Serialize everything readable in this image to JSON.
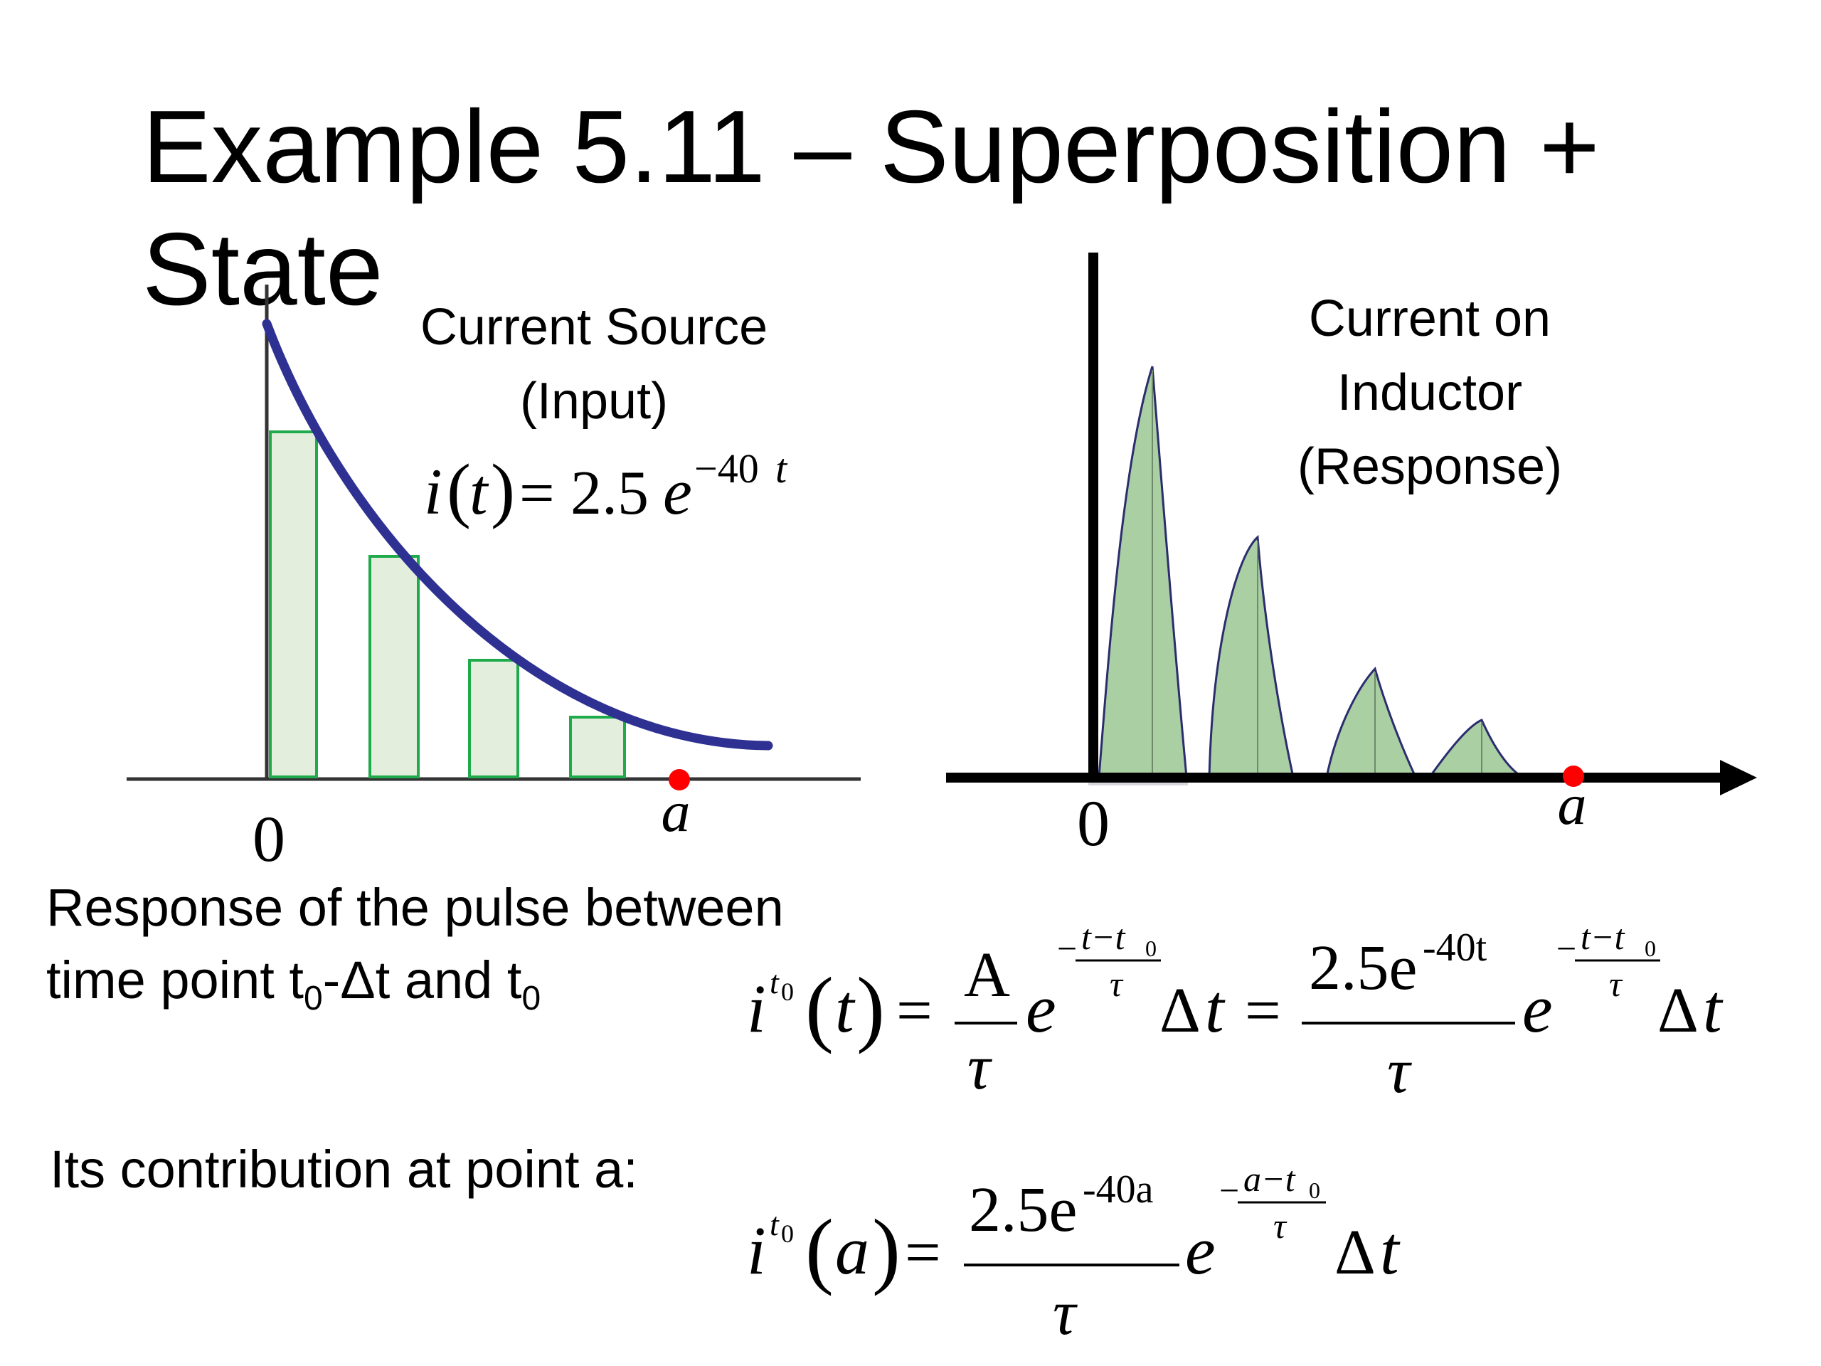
{
  "title": "Example 5.11 – Superposition + State",
  "left_chart": {
    "label_line1": "Current Source",
    "label_line2": "(Input)",
    "formula": {
      "lhs_i": "i",
      "lhs_t": "t",
      "equals": "=",
      "coeff": "2.5",
      "e": "e",
      "exponent": "−40",
      "exponent_var": "t"
    },
    "origin_label": "0",
    "point_label": "a",
    "colors": {
      "curve": "#2e3192",
      "bar_fill": "#e3efdc",
      "bar_stroke": "#1faa4b",
      "point": "#ff0000",
      "axis": "#333333"
    }
  },
  "right_chart": {
    "label_line1": "Current on",
    "label_line2": "Inductor",
    "label_line3": "(Response)",
    "origin_label": "0",
    "point_label": "a",
    "colors": {
      "pulse_fill": "#a9cfa3",
      "pulse_stroke": "#2b2d6e",
      "axis": "#000000",
      "point": "#ff0000"
    }
  },
  "text": {
    "response_line1": "Response of the pulse between",
    "response_line2_a": "time point t",
    "response_sub1": "0",
    "response_line2_b": "-Δt and t",
    "response_sub2": "0",
    "contribution": "Its contribution at point a:"
  },
  "equation1": {
    "i": "i",
    "sup_t": "t",
    "sup_0": "0",
    "paren_t": "t",
    "equals1": "=",
    "A": "A",
    "tau1": "τ",
    "e1": "e",
    "minus1": "−",
    "exp_num1": "t−t",
    "exp_num1_sub": "0",
    "exp_den1": "τ",
    "delta1": "Δ",
    "dt1": "t",
    "equals2": "=",
    "num2": "2.5e",
    "num2_exp": "-40t",
    "tau2": "τ",
    "e2": "e",
    "minus2": "−",
    "exp_num2": "t−t",
    "exp_num2_sub": "0",
    "exp_den2": "τ",
    "delta2": "Δ",
    "dt2": "t"
  },
  "equation2": {
    "i": "i",
    "sup_t": "t",
    "sup_0": "0",
    "paren_a": "a",
    "equals": "=",
    "num": "2.5e",
    "num_exp": "-40a",
    "tau": "τ",
    "e": "e",
    "minus": "−",
    "exp_num": "a−t",
    "exp_num_sub": "0",
    "exp_den": "τ",
    "delta": "Δ",
    "dt": "t"
  }
}
